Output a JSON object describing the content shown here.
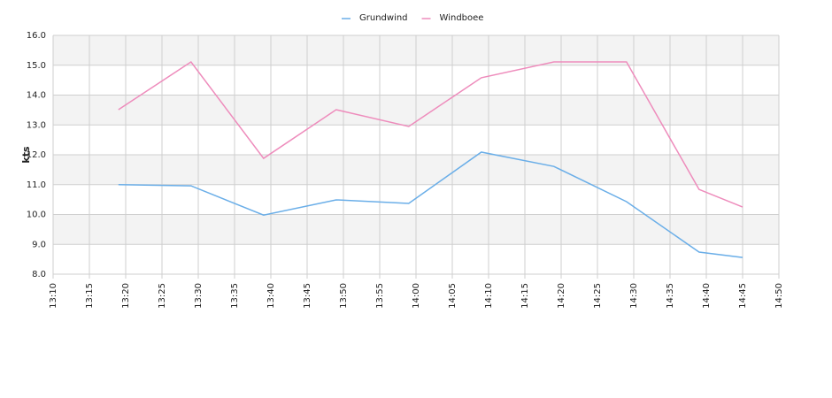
{
  "chart_data": {
    "type": "line",
    "y_label": "kts",
    "x": [
      "13:19",
      "13:29",
      "13:39",
      "13:49",
      "13:59",
      "14:09",
      "14:19",
      "14:29",
      "14:39",
      "14:45"
    ],
    "series": [
      {
        "name": "Grundwind",
        "color": "#6aaee8",
        "values": [
          11.0,
          10.96,
          9.98,
          10.49,
          10.37,
          12.09,
          11.61,
          10.43,
          8.74,
          8.56
        ]
      },
      {
        "name": "Windboee",
        "color": "#ee8cbc",
        "values": [
          13.51,
          15.11,
          11.88,
          13.51,
          12.95,
          14.58,
          15.11,
          15.11,
          10.84,
          10.25
        ]
      }
    ],
    "xlim": [
      "13:10",
      "14:50"
    ],
    "xticks": [
      "13:10",
      "13:15",
      "13:20",
      "13:25",
      "13:30",
      "13:35",
      "13:40",
      "13:45",
      "13:50",
      "13:55",
      "14:00",
      "14:05",
      "14:10",
      "14:15",
      "14:20",
      "14:25",
      "14:30",
      "14:35",
      "14:40",
      "14:45",
      "14:50"
    ],
    "ylim": [
      8,
      16
    ],
    "yticks": [
      {
        "value": 8,
        "label": "8.0"
      },
      {
        "value": 9,
        "label": "9.0"
      },
      {
        "value": 10,
        "label": "10.0"
      },
      {
        "value": 11,
        "label": "11.0"
      },
      {
        "value": 12,
        "label": "12.0"
      },
      {
        "value": 13,
        "label": "13.0"
      },
      {
        "value": 14,
        "label": "14.0"
      },
      {
        "value": 15,
        "label": "15.0"
      },
      {
        "value": 16,
        "label": "16.0"
      }
    ],
    "grid": true,
    "legend": "top"
  }
}
